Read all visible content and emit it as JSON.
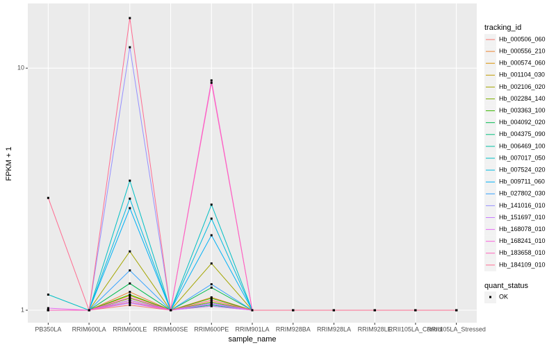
{
  "chart_data": {
    "type": "line",
    "log_y": true,
    "grid": true,
    "x_label": "sample_name",
    "y_label": "FPKM + 1",
    "categories": [
      "PB350LA",
      "RRIM600LA",
      "RRIM600LE",
      "RRIM600SE",
      "RRIM600PE",
      "RRIM901LA",
      "RRIM928BA",
      "RRIM928LA",
      "RRIM928LE",
      "RRII105LA_Control",
      "RRII105LA_Stressed"
    ],
    "ylim": [
      0.888,
      18.5
    ],
    "yticks": [
      1,
      10
    ],
    "legend_title": "tracking_id",
    "point_legend": {
      "title": "quant_status",
      "items": [
        "OK"
      ],
      "color": "#000000"
    },
    "series": [
      {
        "name": "Hb_000506_060",
        "color": "#F8766D",
        "values": [
          1,
          1,
          1.05,
          1,
          1.04,
          1,
          1,
          1,
          1,
          1,
          1
        ]
      },
      {
        "name": "Hb_000556_210",
        "color": "#EA8331",
        "values": [
          1,
          1,
          1.19,
          1,
          1.13,
          1,
          1,
          1,
          1,
          1,
          1
        ]
      },
      {
        "name": "Hb_000574_060",
        "color": "#D89000",
        "values": [
          1,
          1,
          1.15,
          1,
          1.1,
          1,
          1,
          1,
          1,
          1,
          1
        ]
      },
      {
        "name": "Hb_001104_030",
        "color": "#C09B00",
        "values": [
          1,
          1,
          1.1,
          1,
          1.08,
          1,
          1,
          1,
          1,
          1,
          1
        ]
      },
      {
        "name": "Hb_002106_020",
        "color": "#A3A500",
        "values": [
          1,
          1,
          1.75,
          1,
          1.56,
          1,
          1,
          1,
          1,
          1,
          1
        ]
      },
      {
        "name": "Hb_002284_140",
        "color": "#7CAE00",
        "values": [
          1,
          1,
          1.12,
          1,
          1.08,
          1,
          1,
          1,
          1,
          1,
          1
        ]
      },
      {
        "name": "Hb_003363_100",
        "color": "#39B600",
        "values": [
          1,
          1,
          1.16,
          1,
          1.12,
          1,
          1,
          1,
          1,
          1,
          1
        ]
      },
      {
        "name": "Hb_004092_020",
        "color": "#00BB4E",
        "values": [
          1,
          1,
          1.29,
          1,
          1.24,
          1,
          1,
          1,
          1,
          1,
          1
        ]
      },
      {
        "name": "Hb_004375_090",
        "color": "#00BF7D",
        "values": [
          1,
          1,
          1.08,
          1,
          1.05,
          1,
          1,
          1,
          1,
          1,
          1
        ]
      },
      {
        "name": "Hb_006469_100",
        "color": "#00C1A3",
        "values": [
          1,
          1,
          1.1,
          1,
          1.06,
          1,
          1,
          1,
          1,
          1,
          1
        ]
      },
      {
        "name": "Hb_007017_050",
        "color": "#00BFC4",
        "values": [
          1.16,
          1,
          3.43,
          1,
          2.73,
          1,
          1,
          1,
          1,
          1,
          1
        ]
      },
      {
        "name": "Hb_007524_020",
        "color": "#00BAE0",
        "values": [
          1,
          1,
          2.89,
          1,
          2.39,
          1,
          1,
          1,
          1,
          1,
          1
        ]
      },
      {
        "name": "Hb_009711_060",
        "color": "#00B0F6",
        "values": [
          1,
          1,
          2.64,
          1,
          2.04,
          1,
          1,
          1,
          1,
          1,
          1
        ]
      },
      {
        "name": "Hb_027802_030",
        "color": "#35A2FF",
        "values": [
          1,
          1,
          1.46,
          1,
          1.28,
          1,
          1,
          1,
          1,
          1,
          1
        ]
      },
      {
        "name": "Hb_141016_010",
        "color": "#9590FF",
        "values": [
          1,
          1,
          12.2,
          1,
          1.07,
          1,
          1,
          1,
          1,
          1,
          1
        ]
      },
      {
        "name": "Hb_151697_010",
        "color": "#C77CFF",
        "values": [
          1,
          1,
          1.07,
          1,
          1.04,
          1,
          1,
          1,
          1,
          1,
          1
        ]
      },
      {
        "name": "Hb_168078_010",
        "color": "#E76BF3",
        "values": [
          1.02,
          1,
          1.1,
          1,
          1.06,
          1,
          1,
          1,
          1,
          1,
          1
        ]
      },
      {
        "name": "Hb_168241_010",
        "color": "#FA62DB",
        "values": [
          1,
          1,
          1.13,
          1,
          8.9,
          1,
          1,
          1,
          1,
          1,
          1
        ]
      },
      {
        "name": "Hb_183658_010",
        "color": "#FF62BC",
        "values": [
          1,
          1,
          1.08,
          1,
          8.7,
          1,
          1,
          1,
          1,
          1,
          1
        ]
      },
      {
        "name": "Hb_184109_010",
        "color": "#FF6C91",
        "values": [
          2.91,
          1,
          16.1,
          1,
          1.1,
          1,
          1,
          1,
          1,
          1,
          1
        ]
      }
    ]
  }
}
